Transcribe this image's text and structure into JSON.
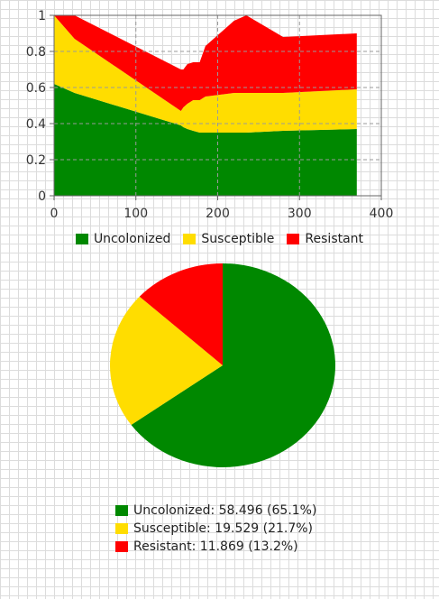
{
  "colors": {
    "uncolonized": "#008800",
    "susceptible": "#ffdd00",
    "resistant": "#ff0000"
  },
  "chart_data": [
    {
      "type": "area",
      "stacked": true,
      "x": [
        0,
        25,
        155,
        158,
        163,
        170,
        178,
        185,
        220,
        235,
        280,
        370
      ],
      "series": [
        {
          "name": "Uncolonized",
          "values": [
            0.62,
            0.57,
            0.39,
            0.38,
            0.37,
            0.36,
            0.35,
            0.35,
            0.35,
            0.35,
            0.36,
            0.37
          ]
        },
        {
          "name": "Susceptible",
          "values": [
            0.38,
            0.3,
            0.08,
            0.11,
            0.14,
            0.17,
            0.18,
            0.2,
            0.22,
            0.22,
            0.21,
            0.22
          ]
        },
        {
          "name": "Resistant",
          "values": [
            0.0,
            0.13,
            0.23,
            0.21,
            0.22,
            0.21,
            0.21,
            0.28,
            0.4,
            0.43,
            0.31,
            0.31
          ]
        }
      ],
      "xlim": [
        0,
        400
      ],
      "ylim": [
        0,
        1
      ],
      "x_ticks": [
        "0",
        "100",
        "200",
        "300",
        "400"
      ],
      "y_ticks": [
        "0",
        "0.2",
        "0.4",
        "0.6",
        "0.8",
        "1"
      ],
      "grid": true,
      "legend": [
        "Uncolonized",
        "Susceptible",
        "Resistant"
      ],
      "legend_position": "bottom"
    },
    {
      "type": "pie",
      "slices": [
        {
          "name": "Uncolonized",
          "value": 58.496,
          "percent": 65.1
        },
        {
          "name": "Susceptible",
          "value": 19.529,
          "percent": 21.7
        },
        {
          "name": "Resistant",
          "value": 11.869,
          "percent": 13.2
        }
      ],
      "legend_position": "bottom"
    }
  ],
  "legend_labels": {
    "uncolonized": "Uncolonized",
    "susceptible": "Susceptible",
    "resistant": "Resistant"
  },
  "pie_legend_labels": {
    "uncolonized": "Uncolonized: 58.496 (65.1%)",
    "susceptible": "Susceptible: 19.529 (21.7%)",
    "resistant": "Resistant: 11.869 (13.2%)"
  }
}
